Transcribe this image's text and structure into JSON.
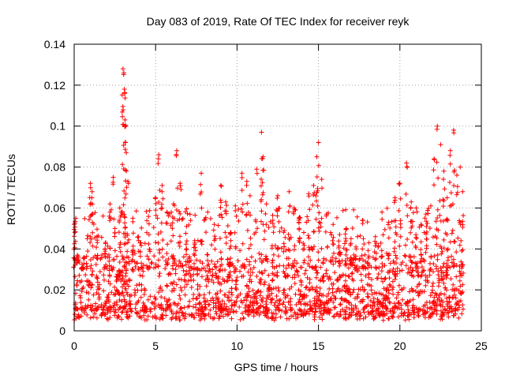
{
  "chart_data": {
    "type": "scatter",
    "title": "Day 083 of 2019, Rate Of TEC Index for receiver reyk",
    "xlabel": "GPS time / hours",
    "ylabel": "ROTI / TECUs",
    "xlim": [
      0,
      25
    ],
    "ylim": [
      0,
      0.14
    ],
    "xticks": [
      0,
      5,
      10,
      15,
      20,
      25
    ],
    "xtick_labels": [
      "0",
      "5",
      "10",
      "15",
      "20",
      "25"
    ],
    "yticks": [
      0,
      0.02,
      0.04,
      0.06,
      0.08,
      0.1,
      0.12,
      0.14
    ],
    "ytick_labels": [
      "0",
      "0.02",
      "0.04",
      "0.06",
      "0.08",
      "0.1",
      "0.12",
      "0.14"
    ],
    "grid": true,
    "marker": "+",
    "color": "#ff0000",
    "series": [
      {
        "name": "ROTI",
        "x": [
          0.0,
          0.1,
          0.2,
          0.5,
          0.8,
          1.0,
          1.1,
          1.4,
          1.9,
          2.2,
          2.4,
          2.5,
          2.8,
          3.0,
          3.05,
          3.08,
          3.1,
          3.12,
          3.15,
          3.2,
          3.3,
          3.6,
          4.1,
          4.6,
          5.0,
          5.2,
          5.4,
          5.7,
          6.1,
          6.3,
          6.5,
          6.9,
          7.4,
          7.8,
          8.2,
          8.6,
          9.0,
          9.3,
          9.6,
          9.9,
          10.3,
          10.6,
          10.8,
          11.2,
          11.5,
          11.6,
          11.8,
          12.2,
          12.5,
          12.9,
          13.2,
          13.5,
          13.8,
          14.1,
          14.4,
          14.7,
          14.9,
          15.0,
          15.2,
          15.5,
          15.9,
          16.3,
          16.7,
          17.0,
          17.3,
          17.7,
          18.1,
          18.5,
          18.9,
          19.3,
          19.7,
          20.0,
          20.4,
          20.7,
          21.0,
          21.3,
          21.6,
          21.9,
          22.1,
          22.3,
          22.5,
          22.7,
          22.9,
          23.1,
          23.3,
          23.5,
          23.7,
          23.85
        ],
        "y": [
          0.052,
          0.055,
          0.037,
          0.031,
          0.045,
          0.072,
          0.068,
          0.046,
          0.04,
          0.062,
          0.075,
          0.05,
          0.06,
          0.128,
          0.126,
          0.118,
          0.116,
          0.103,
          0.092,
          0.087,
          0.073,
          0.055,
          0.043,
          0.047,
          0.065,
          0.086,
          0.071,
          0.058,
          0.062,
          0.088,
          0.072,
          0.051,
          0.044,
          0.077,
          0.058,
          0.052,
          0.071,
          0.063,
          0.048,
          0.061,
          0.077,
          0.073,
          0.066,
          0.079,
          0.097,
          0.085,
          0.062,
          0.054,
          0.066,
          0.049,
          0.068,
          0.06,
          0.055,
          0.048,
          0.067,
          0.071,
          0.085,
          0.092,
          0.074,
          0.057,
          0.052,
          0.047,
          0.05,
          0.045,
          0.041,
          0.054,
          0.043,
          0.046,
          0.058,
          0.053,
          0.065,
          0.072,
          0.082,
          0.063,
          0.06,
          0.052,
          0.057,
          0.061,
          0.084,
          0.1,
          0.091,
          0.078,
          0.065,
          0.088,
          0.098,
          0.076,
          0.08,
          0.068
        ],
        "baseline_range": [
          0.005,
          0.035
        ]
      }
    ]
  }
}
